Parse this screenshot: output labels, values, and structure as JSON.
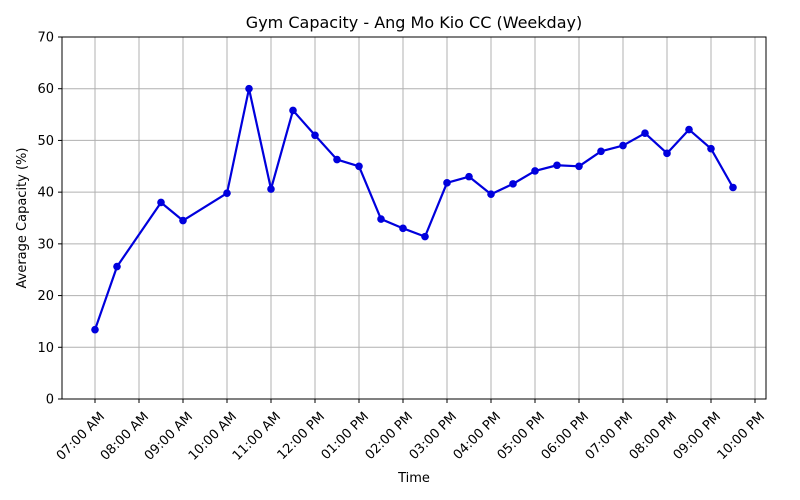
{
  "chart_data": {
    "type": "line",
    "title": "Gym Capacity - Ang Mo Kio CC (Weekday)",
    "xlabel": "Time",
    "ylabel": "Average Capacity (%)",
    "ylim": [
      0,
      70
    ],
    "yticks": [
      0,
      10,
      20,
      30,
      40,
      50,
      60,
      70
    ],
    "xlim_hours": [
      6.25,
      22.25
    ],
    "xticks": [
      {
        "hour": 7,
        "label": "07:00 AM"
      },
      {
        "hour": 8,
        "label": "08:00 AM"
      },
      {
        "hour": 9,
        "label": "09:00 AM"
      },
      {
        "hour": 10,
        "label": "10:00 AM"
      },
      {
        "hour": 11,
        "label": "11:00 AM"
      },
      {
        "hour": 12,
        "label": "12:00 PM"
      },
      {
        "hour": 13,
        "label": "01:00 PM"
      },
      {
        "hour": 14,
        "label": "02:00 PM"
      },
      {
        "hour": 15,
        "label": "03:00 PM"
      },
      {
        "hour": 16,
        "label": "04:00 PM"
      },
      {
        "hour": 17,
        "label": "05:00 PM"
      },
      {
        "hour": 18,
        "label": "06:00 PM"
      },
      {
        "hour": 19,
        "label": "07:00 PM"
      },
      {
        "hour": 20,
        "label": "08:00 PM"
      },
      {
        "hour": 21,
        "label": "09:00 PM"
      },
      {
        "hour": 22,
        "label": "10:00 PM"
      }
    ],
    "grid": true,
    "series": [
      {
        "color": "#0000dd",
        "points": [
          [
            7.0,
            13.4
          ],
          [
            7.5,
            25.6
          ],
          [
            8.5,
            38.0
          ],
          [
            9.0,
            34.5
          ],
          [
            10.0,
            39.8
          ],
          [
            10.5,
            60.0
          ],
          [
            11.0,
            40.6
          ],
          [
            11.5,
            55.8
          ],
          [
            12.0,
            51.0
          ],
          [
            12.5,
            46.3
          ],
          [
            13.0,
            45.0
          ],
          [
            13.5,
            34.8
          ],
          [
            14.0,
            33.0
          ],
          [
            14.5,
            31.4
          ],
          [
            15.0,
            41.8
          ],
          [
            15.5,
            43.0
          ],
          [
            16.0,
            39.6
          ],
          [
            16.5,
            41.6
          ],
          [
            17.0,
            44.1
          ],
          [
            17.5,
            45.2
          ],
          [
            18.0,
            45.0
          ],
          [
            18.5,
            47.9
          ],
          [
            19.0,
            49.0
          ],
          [
            19.5,
            51.4
          ],
          [
            20.0,
            47.5
          ],
          [
            20.5,
            52.1
          ],
          [
            21.0,
            48.4
          ],
          [
            21.5,
            40.9
          ]
        ]
      }
    ]
  }
}
